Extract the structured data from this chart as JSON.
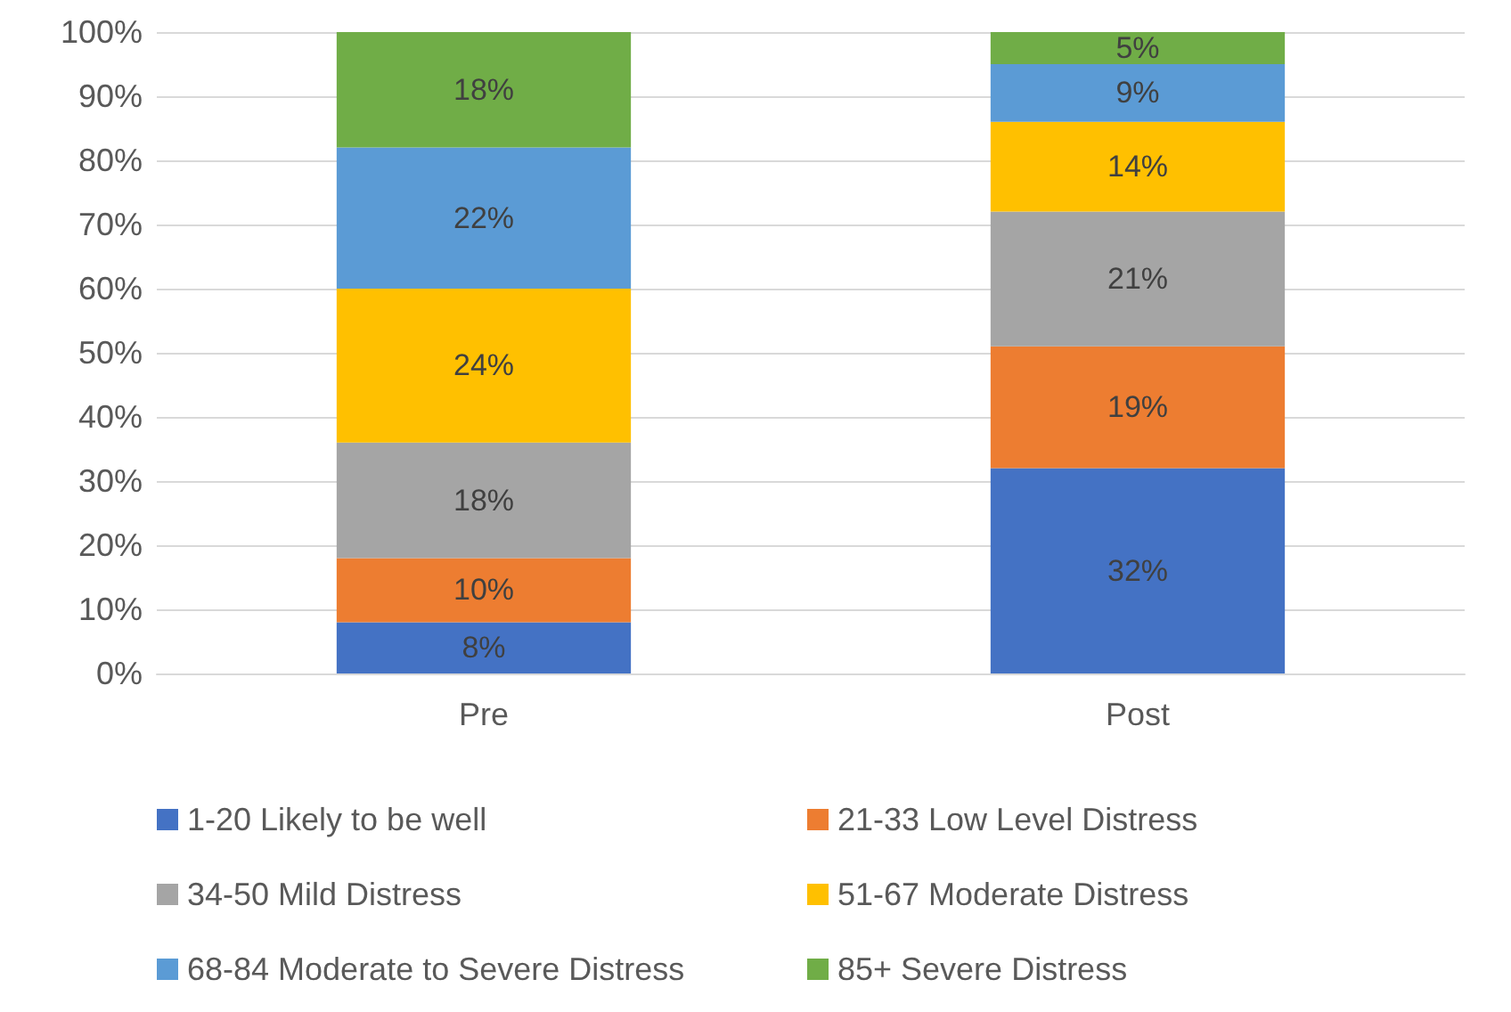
{
  "chart_data": {
    "type": "bar",
    "stacked": true,
    "categories": [
      "Pre",
      "Post"
    ],
    "series": [
      {
        "name": "1-20 Likely to be well",
        "color": "#4472c4",
        "values": [
          8,
          32
        ],
        "value_labels": [
          "8%",
          "32%"
        ]
      },
      {
        "name": "21-33 Low Level Distress",
        "color": "#ed7d31",
        "values": [
          10,
          19
        ],
        "value_labels": [
          "10%",
          "19%"
        ]
      },
      {
        "name": "34-50 Mild Distress",
        "color": "#a5a5a5",
        "values": [
          18,
          21
        ],
        "value_labels": [
          "18%",
          "21%"
        ]
      },
      {
        "name": "51-67 Moderate Distress",
        "color": "#ffc000",
        "values": [
          24,
          14
        ],
        "value_labels": [
          "24%",
          "14%"
        ]
      },
      {
        "name": "68-84 Moderate to Severe Distress",
        "color": "#5b9bd5",
        "values": [
          22,
          9
        ],
        "value_labels": [
          "22%",
          "9%"
        ]
      },
      {
        "name": "85+ Severe Distress",
        "color": "#70ad47",
        "values": [
          18,
          5
        ],
        "value_labels": [
          "18%",
          "5%"
        ]
      }
    ],
    "ylim": [
      0,
      100
    ],
    "yticks": [
      {
        "value": 0,
        "label": "0%"
      },
      {
        "value": 10,
        "label": "10%"
      },
      {
        "value": 20,
        "label": "20%"
      },
      {
        "value": 30,
        "label": "30%"
      },
      {
        "value": 40,
        "label": "40%"
      },
      {
        "value": 50,
        "label": "50%"
      },
      {
        "value": 60,
        "label": "60%"
      },
      {
        "value": 70,
        "label": "70%"
      },
      {
        "value": 80,
        "label": "80%"
      },
      {
        "value": 90,
        "label": "90%"
      },
      {
        "value": 100,
        "label": "100%"
      }
    ],
    "grid": "y",
    "legend": "bottom"
  }
}
